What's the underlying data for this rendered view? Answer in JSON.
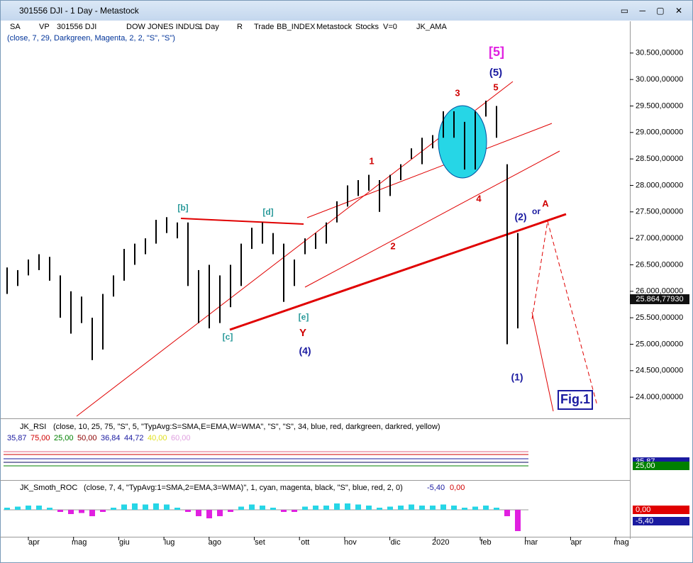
{
  "window": {
    "title": "301556 DJI - 1 Day - Metastock"
  },
  "toolbar": {
    "items": [
      "SA",
      "VP",
      "301556 DJI",
      "DOW JONES INDUS",
      "1 Day",
      "R",
      "Trade",
      "BB_INDEX",
      "Metastock",
      "Stocks",
      "V=0",
      "JK_AMA"
    ],
    "params": "(close, 7, 29, Darkgreen, Magenta, 2, 2, \"S\", \"S\")"
  },
  "chart_data": {
    "type": "ohlc",
    "months": [
      "apr",
      "mag",
      "giu",
      "lug",
      "ago",
      "set",
      "ott",
      "nov",
      "dic",
      "2020",
      "feb",
      "mar",
      "apr",
      "mag"
    ],
    "ylim": [
      23600,
      31100
    ],
    "yticks": [
      {
        "value": 24000,
        "label": "24.000,00000"
      },
      {
        "value": 24500,
        "label": "24.500,00000"
      },
      {
        "value": 25000,
        "label": "25.000,00000"
      },
      {
        "value": 25500,
        "label": "25.500,00000"
      },
      {
        "value": 26000,
        "label": "26.000,00000"
      },
      {
        "value": 26500,
        "label": "26.500,00000"
      },
      {
        "value": 27000,
        "label": "27.000,00000"
      },
      {
        "value": 27500,
        "label": "27.500,00000"
      },
      {
        "value": 28000,
        "label": "28.000,00000"
      },
      {
        "value": 28500,
        "label": "28.500,00000"
      },
      {
        "value": 29000,
        "label": "29.000,00000"
      },
      {
        "value": 29500,
        "label": "29.500,00000"
      },
      {
        "value": 30000,
        "label": "30.000,00000"
      },
      {
        "value": 30500,
        "label": "30.500,00000"
      }
    ],
    "high": [
      26450,
      26400,
      26600,
      26700,
      26650,
      26300,
      26000,
      25900,
      25500,
      25950,
      26300,
      26800,
      26900,
      27000,
      27350,
      27400,
      27300,
      27300,
      26400,
      26500,
      26300,
      26500,
      26900,
      27200,
      27300,
      27100,
      26900,
      26600,
      27000,
      27100,
      27300,
      27700,
      28000,
      28100,
      28200,
      28100,
      28200,
      28400,
      28700,
      28900,
      28950,
      29400,
      29400,
      29200,
      29400,
      29600,
      29500,
      28400,
      27100
    ],
    "low": [
      25950,
      26100,
      26300,
      26400,
      26200,
      25500,
      25200,
      25400,
      24700,
      24900,
      25900,
      26200,
      26500,
      26700,
      26900,
      27100,
      27000,
      26100,
      25400,
      25300,
      25400,
      25700,
      26100,
      26800,
      26900,
      26700,
      25800,
      26100,
      26700,
      26800,
      26900,
      27300,
      27600,
      27800,
      27900,
      27500,
      27800,
      28100,
      28500,
      28400,
      28700,
      28900,
      28900,
      28300,
      28300,
      29300,
      28900,
      25000,
      25300
    ],
    "last": {
      "value": 25864.7793,
      "label": "25.864,77930"
    },
    "annotations": [
      "[5]",
      "(5)",
      "5",
      "3",
      "1",
      "2",
      "4",
      "[b]",
      "[d]",
      "[c]",
      "[e]",
      "Y",
      "(4)",
      "(2)",
      "or",
      "A",
      "(1)"
    ],
    "figure_label": "Fig.1"
  },
  "rsi": {
    "name": "JK_RSI",
    "params": "(close, 10, 25, 75, \"S\", 5, \"TypAvg:S=SMA,E=EMA,W=WMA\", \"S\", \"S\", 34, blue, red, darkgreen, darkred, yellow)",
    "readouts": [
      "35,87",
      "75,00",
      "25,00",
      "50,00",
      "36,84",
      "44,72",
      "40,00",
      "60,00"
    ],
    "axis_labels": [
      "35,87",
      "25,00"
    ]
  },
  "roc": {
    "name": "JK_Smoth_ROC",
    "params": "(close, 7, 4, \"TypAvg:1=SMA,2=EMA,3=WMA)\", 1, cyan, magenta, black, \"S\", blue, red, 2, 0)",
    "readouts": [
      "-5,40",
      "0,00"
    ],
    "axis_labels": [
      "0,00",
      "-5,40"
    ],
    "values": [
      1,
      1.5,
      2,
      2,
      1,
      -1,
      -2,
      -1.5,
      -3,
      -1,
      1,
      2.5,
      3,
      2.5,
      3,
      2.5,
      1,
      -1,
      -3,
      -4,
      -3,
      -1,
      1.5,
      2.5,
      2,
      1,
      -1,
      -1,
      1.5,
      2,
      2,
      3,
      3,
      2.5,
      2,
      1,
      1.5,
      2,
      2.5,
      2,
      2,
      2.5,
      2,
      1,
      1.5,
      2,
      1,
      -3,
      -10
    ]
  }
}
